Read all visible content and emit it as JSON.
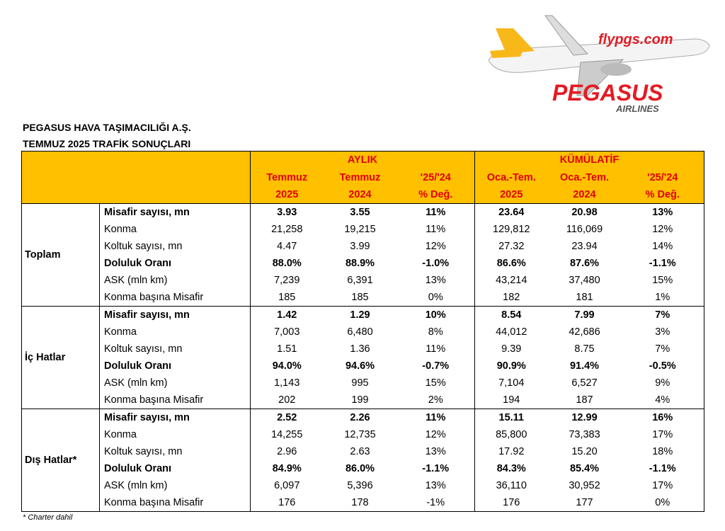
{
  "logo": {
    "site": "flypgs.com",
    "brand": "PEGASUS",
    "sub": "AIRLINES"
  },
  "header": {
    "title": "PEGASUS HAVA TAŞIMACILIĞI A.Ş.",
    "subtitle": "TEMMUZ 2025 TRAFİK SONUÇLARI"
  },
  "table": {
    "groups": [
      "AYLIK",
      "KÜMÜLATİF"
    ],
    "columns": [
      [
        "Temmuz",
        "2025"
      ],
      [
        "Temmuz",
        "2024"
      ],
      [
        "'25/'24",
        "% Değ."
      ],
      [
        "Oca.-Tem.",
        "2025"
      ],
      [
        "Oca.-Tem.",
        "2024"
      ],
      [
        "'25/'24",
        "% Değ."
      ]
    ],
    "sections": [
      {
        "name": "Toplam",
        "rows": [
          {
            "metric": "Misafir sayısı, mn",
            "values": [
              "3.93",
              "3.55",
              "11%",
              "23.64",
              "20.98",
              "13%"
            ]
          },
          {
            "metric": "Konma",
            "values": [
              "21,258",
              "19,215",
              "11%",
              "129,812",
              "116,069",
              "12%"
            ]
          },
          {
            "metric": "Koltuk sayısı, mn",
            "values": [
              "4.47",
              "3.99",
              "12%",
              "27.32",
              "23.94",
              "14%"
            ]
          },
          {
            "metric": "Doluluk Oranı",
            "values": [
              "88.0%",
              "88.9%",
              "-1.0%",
              "86.6%",
              "87.6%",
              "-1.1%"
            ]
          },
          {
            "metric": "ASK (mln km)",
            "values": [
              "7,239",
              "6,391",
              "13%",
              "43,214",
              "37,480",
              "15%"
            ]
          },
          {
            "metric": "Konma başına Misafir",
            "values": [
              "185",
              "185",
              "0%",
              "182",
              "181",
              "1%"
            ]
          }
        ]
      },
      {
        "name": "İç Hatlar",
        "rows": [
          {
            "metric": "Misafir sayısı, mn",
            "values": [
              "1.42",
              "1.29",
              "10%",
              "8.54",
              "7.99",
              "7%"
            ]
          },
          {
            "metric": "Konma",
            "values": [
              "7,003",
              "6,480",
              "8%",
              "44,012",
              "42,686",
              "3%"
            ]
          },
          {
            "metric": "Koltuk sayısı, mn",
            "values": [
              "1.51",
              "1.36",
              "11%",
              "9.39",
              "8.75",
              "7%"
            ]
          },
          {
            "metric": "Doluluk Oranı",
            "values": [
              "94.0%",
              "94.6%",
              "-0.7%",
              "90.9%",
              "91.4%",
              "-0.5%"
            ]
          },
          {
            "metric": "ASK (mln km)",
            "values": [
              "1,143",
              "995",
              "15%",
              "7,104",
              "6,527",
              "9%"
            ]
          },
          {
            "metric": "Konma başına Misafir",
            "values": [
              "202",
              "199",
              "2%",
              "194",
              "187",
              "4%"
            ]
          }
        ]
      },
      {
        "name": "Dış Hatlar*",
        "rows": [
          {
            "metric": "Misafir sayısı, mn",
            "values": [
              "2.52",
              "2.26",
              "11%",
              "15.11",
              "12.99",
              "16%"
            ]
          },
          {
            "metric": "Konma",
            "values": [
              "14,255",
              "12,735",
              "12%",
              "85,800",
              "73,383",
              "17%"
            ]
          },
          {
            "metric": "Koltuk sayısı, mn",
            "values": [
              "2.96",
              "2.63",
              "13%",
              "17.92",
              "15.20",
              "18%"
            ]
          },
          {
            "metric": "Doluluk Oranı",
            "values": [
              "84.9%",
              "86.0%",
              "-1.1%",
              "84.3%",
              "85.4%",
              "-1.1%"
            ]
          },
          {
            "metric": "ASK (mln km)",
            "values": [
              "6,097",
              "5,396",
              "13%",
              "36,110",
              "30,952",
              "17%"
            ]
          },
          {
            "metric": "Konma başına Misafir",
            "values": [
              "176",
              "178",
              "-1%",
              "176",
              "177",
              "0%"
            ]
          }
        ]
      }
    ]
  },
  "footnote": "* Charter dahil"
}
